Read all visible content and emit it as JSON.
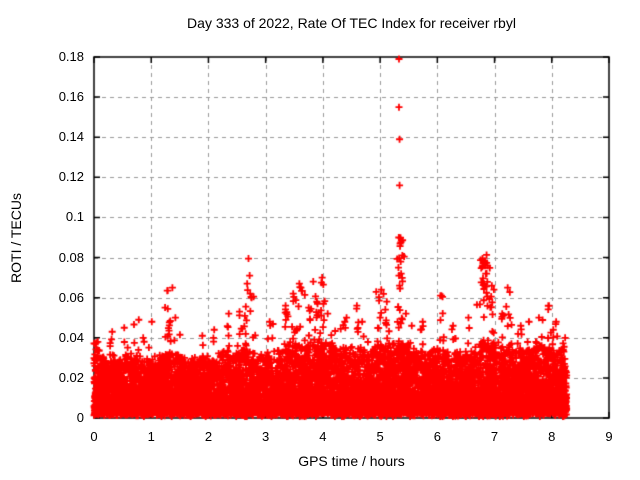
{
  "chart_data": {
    "type": "scatter",
    "title": "Day 333 of 2022, Rate Of TEC Index for receiver rbyl",
    "xlabel": "GPS time / hours",
    "ylabel": "ROTI / TECUs",
    "xlim": [
      0,
      9
    ],
    "ylim": [
      0,
      0.18
    ],
    "xticks": [
      {
        "v": 0,
        "label": "0"
      },
      {
        "v": 1,
        "label": "1"
      },
      {
        "v": 2,
        "label": "2"
      },
      {
        "v": 3,
        "label": "3"
      },
      {
        "v": 4,
        "label": "4"
      },
      {
        "v": 5,
        "label": "5"
      },
      {
        "v": 6,
        "label": "6"
      },
      {
        "v": 7,
        "label": "7"
      },
      {
        "v": 8,
        "label": "8"
      },
      {
        "v": 9,
        "label": "9"
      }
    ],
    "yticks": [
      {
        "v": 0,
        "label": "0"
      },
      {
        "v": 0.02,
        "label": "0.02"
      },
      {
        "v": 0.04,
        "label": "0.04"
      },
      {
        "v": 0.06,
        "label": "0.06"
      },
      {
        "v": 0.08,
        "label": "0.08"
      },
      {
        "v": 0.1,
        "label": "0.1"
      },
      {
        "v": 0.12,
        "label": "0.12"
      },
      {
        "v": 0.14,
        "label": "0.14"
      },
      {
        "v": 0.16,
        "label": "0.16"
      },
      {
        "v": 0.18,
        "label": "0.18"
      }
    ],
    "grid": {
      "show": true,
      "color": "#999999",
      "dash": [
        4,
        4
      ]
    },
    "axis_color": "#000000",
    "marker": {
      "shape": "plus",
      "color": "#ff0000",
      "size": 7,
      "line_width": 1.8
    },
    "legend": "none",
    "x_data_range": [
      0,
      8.26
    ],
    "generation": {
      "seed": 20221129,
      "n_band": 12000,
      "y_floor": 0.0035,
      "band_profile": [
        [
          0.0,
          0.037
        ],
        [
          0.15,
          0.031
        ],
        [
          0.4,
          0.029
        ],
        [
          0.6,
          0.031
        ],
        [
          0.8,
          0.03
        ],
        [
          1.0,
          0.027
        ],
        [
          1.2,
          0.031
        ],
        [
          1.3,
          0.036
        ],
        [
          1.5,
          0.03
        ],
        [
          1.7,
          0.028
        ],
        [
          1.9,
          0.029
        ],
        [
          2.1,
          0.031
        ],
        [
          2.4,
          0.032
        ],
        [
          2.6,
          0.034
        ],
        [
          2.8,
          0.031
        ],
        [
          3.0,
          0.031
        ],
        [
          3.2,
          0.033
        ],
        [
          3.4,
          0.036
        ],
        [
          3.6,
          0.037
        ],
        [
          3.8,
          0.037
        ],
        [
          4.0,
          0.039
        ],
        [
          4.2,
          0.036
        ],
        [
          4.4,
          0.034
        ],
        [
          4.6,
          0.036
        ],
        [
          4.8,
          0.034
        ],
        [
          5.0,
          0.037
        ],
        [
          5.2,
          0.036
        ],
        [
          5.4,
          0.038
        ],
        [
          5.6,
          0.033
        ],
        [
          5.8,
          0.032
        ],
        [
          6.0,
          0.034
        ],
        [
          6.2,
          0.032
        ],
        [
          6.4,
          0.032
        ],
        [
          6.6,
          0.033
        ],
        [
          6.8,
          0.038
        ],
        [
          7.0,
          0.037
        ],
        [
          7.2,
          0.034
        ],
        [
          7.4,
          0.034
        ],
        [
          7.6,
          0.035
        ],
        [
          7.8,
          0.036
        ],
        [
          8.0,
          0.034
        ],
        [
          8.26,
          0.036
        ]
      ],
      "spikes": [
        [
          0.05,
          0.038,
          8
        ],
        [
          0.3,
          0.043,
          5
        ],
        [
          0.55,
          0.045,
          6
        ],
        [
          0.74,
          0.049,
          4
        ],
        [
          0.9,
          0.04,
          4
        ],
        [
          1.05,
          0.048,
          5
        ],
        [
          1.3,
          0.065,
          22
        ],
        [
          1.45,
          0.05,
          8
        ],
        [
          1.9,
          0.041,
          4
        ],
        [
          2.1,
          0.044,
          5
        ],
        [
          2.35,
          0.052,
          8
        ],
        [
          2.55,
          0.053,
          9
        ],
        [
          2.66,
          0.067,
          12
        ],
        [
          2.78,
          0.062,
          9
        ],
        [
          3.1,
          0.048,
          7
        ],
        [
          3.35,
          0.056,
          10
        ],
        [
          3.5,
          0.062,
          13
        ],
        [
          3.62,
          0.067,
          13
        ],
        [
          3.75,
          0.055,
          9
        ],
        [
          3.9,
          0.068,
          13
        ],
        [
          4.0,
          0.07,
          11
        ],
        [
          4.15,
          0.052,
          7
        ],
        [
          4.35,
          0.05,
          7
        ],
        [
          4.6,
          0.056,
          9
        ],
        [
          4.75,
          0.048,
          6
        ],
        [
          5.0,
          0.064,
          12
        ],
        [
          5.12,
          0.058,
          9
        ],
        [
          5.35,
          0.09,
          26
        ],
        [
          5.55,
          0.046,
          6
        ],
        [
          5.75,
          0.048,
          6
        ],
        [
          6.07,
          0.061,
          9
        ],
        [
          6.3,
          0.046,
          6
        ],
        [
          6.55,
          0.05,
          7
        ],
        [
          6.95,
          0.066,
          12
        ],
        [
          7.1,
          0.052,
          7
        ],
        [
          7.25,
          0.065,
          11
        ],
        [
          7.45,
          0.046,
          6
        ],
        [
          7.6,
          0.048,
          7
        ],
        [
          7.8,
          0.05,
          7
        ],
        [
          7.95,
          0.056,
          8
        ],
        [
          8.02,
          0.044,
          10
        ],
        [
          8.1,
          0.048,
          6
        ],
        [
          8.2,
          0.04,
          8
        ]
      ],
      "clusters": [
        {
          "x": 6.82,
          "y": 0.075,
          "rx": 0.045,
          "ry": 0.0035,
          "n": 16
        },
        {
          "x": 6.84,
          "y": 0.062,
          "rx": 0.05,
          "ry": 0.006,
          "n": 14
        }
      ],
      "outliers": [
        [
          5.33,
          0.179
        ],
        [
          5.33,
          0.155
        ],
        [
          5.34,
          0.139
        ],
        [
          5.34,
          0.116
        ],
        [
          5.35,
          0.087
        ],
        [
          5.42,
          0.0805
        ],
        [
          5.36,
          0.078
        ],
        [
          5.33,
          0.071
        ],
        [
          5.34,
          0.066
        ],
        [
          2.7,
          0.0795
        ],
        [
          2.72,
          0.071
        ],
        [
          1.28,
          0.0635
        ],
        [
          6.79,
          0.0795
        ],
        [
          6.83,
          0.078
        ]
      ]
    }
  }
}
